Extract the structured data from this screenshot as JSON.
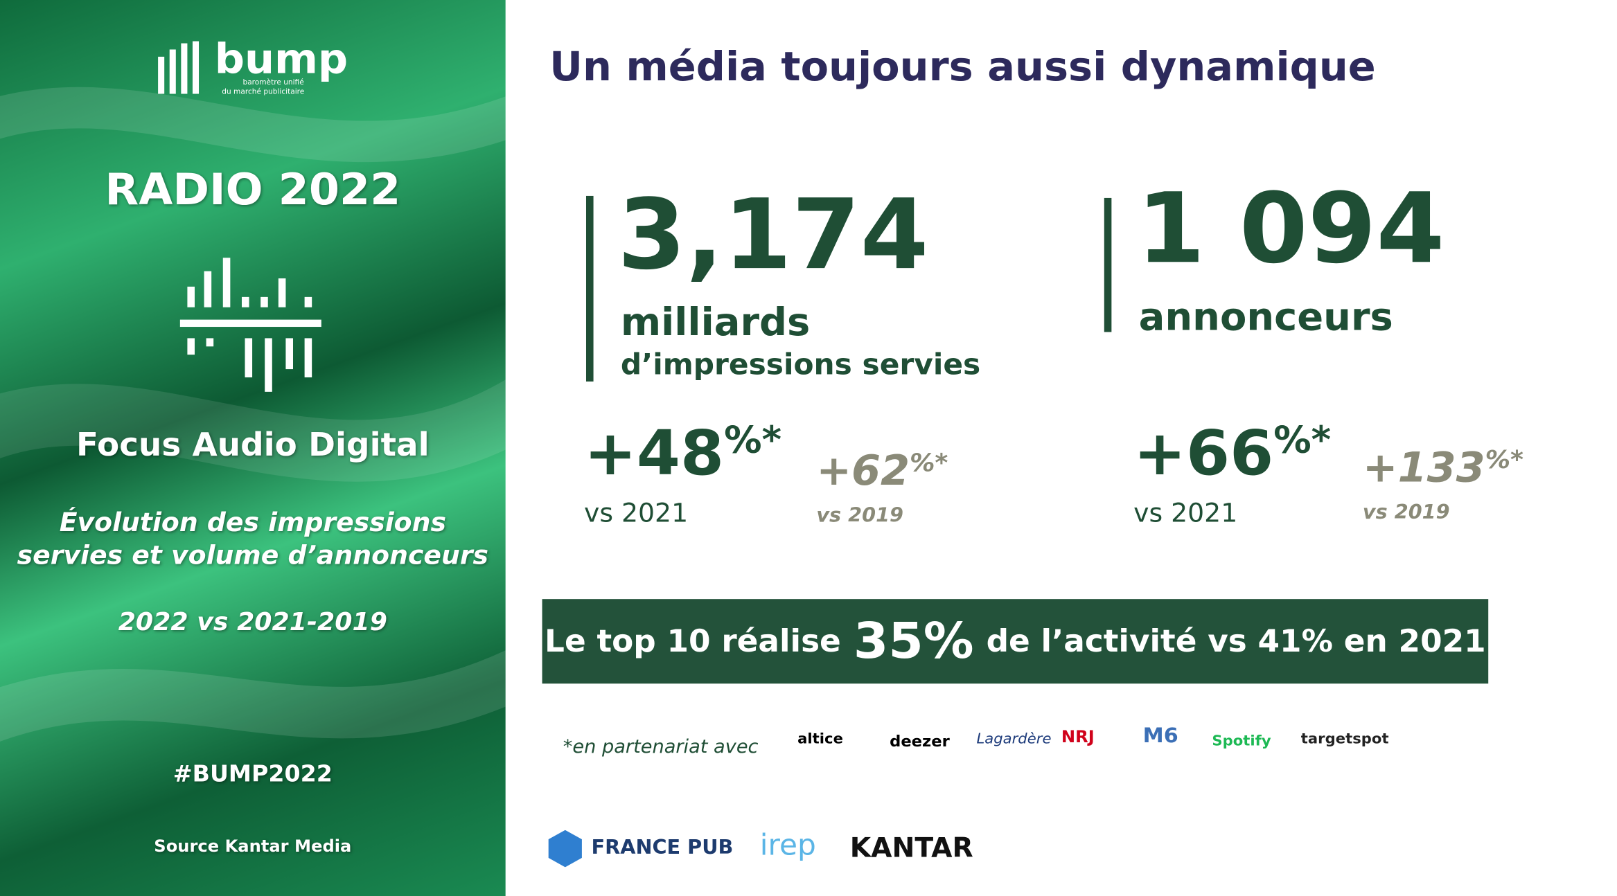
{
  "logo": {
    "name": "bump",
    "tagline_1": "baromètre unifié",
    "tagline_2": "du marché publicitaire"
  },
  "sidebar": {
    "title": "RADIO 2022",
    "focus": "Focus Audio Digital",
    "description": [
      "Évolution des impressions",
      "servies et volume d’annonceurs"
    ],
    "period": "2022 vs 2021-2019",
    "hashtag": "#BUMP2022",
    "source": "Source Kantar Media"
  },
  "header": {
    "title": "Un média toujours aussi dynamique"
  },
  "stats": [
    {
      "value": "3,174",
      "unit": "milliards",
      "detail": "d’impressions servies"
    },
    {
      "value": "1 094",
      "unit": "annonceurs"
    }
  ],
  "growth": [
    {
      "value": "+48",
      "suffix": "%*",
      "label": "vs 2021"
    },
    {
      "value": "+62",
      "suffix": "%*",
      "label": "vs 2019"
    },
    {
      "value": "+66",
      "suffix": "%*",
      "label": "vs 2021"
    },
    {
      "value": "+133",
      "suffix": "%*",
      "label": "vs 2019"
    }
  ],
  "banner": {
    "before": "Le top 10 réalise",
    "highlight": "35%",
    "after": "de l’activité vs 41% en 2021"
  },
  "partners": {
    "label": "*en partenariat avec",
    "logos": [
      "altice",
      "deezer",
      "Lagardère",
      "NRJ",
      "M6",
      "Spotify",
      "targetspot"
    ]
  },
  "footer": {
    "logos": [
      "FRANCE PUB",
      "irep",
      "KANTAR"
    ]
  }
}
